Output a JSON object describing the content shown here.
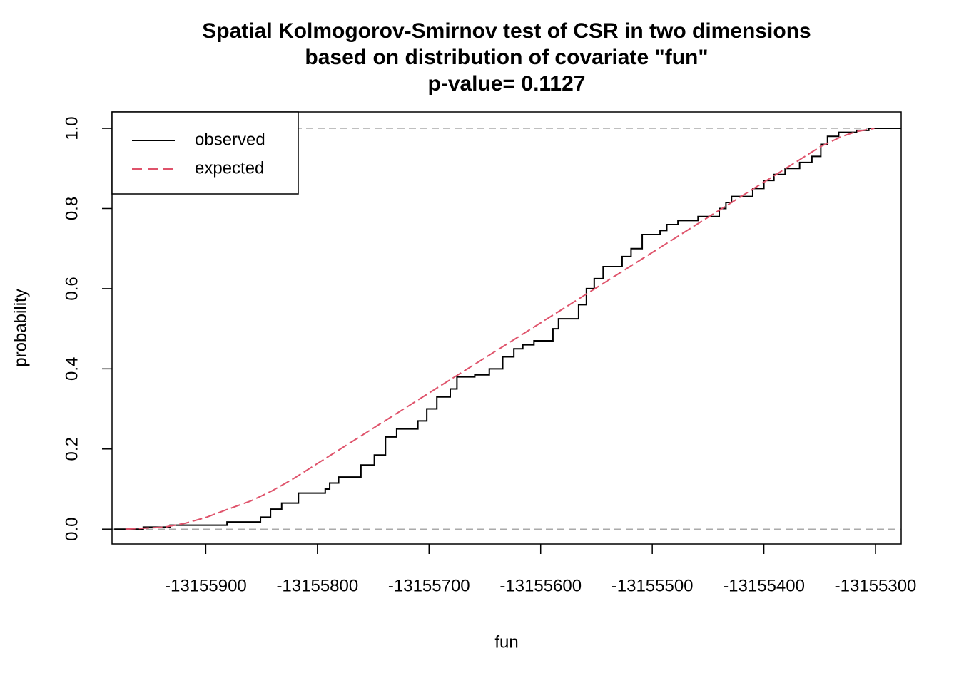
{
  "chart_data": {
    "type": "line",
    "title": "Spatial Kolmogorov-Smirnov test of CSR in two dimensions",
    "subtitle": "based on distribution of covariate \"fun\"",
    "annotation": "p-value= 0.1127",
    "xlabel": "fun",
    "ylabel": "probability",
    "xlim": [
      -13155984,
      -13155277
    ],
    "ylim": [
      -0.037,
      1.041
    ],
    "xticks": [
      -13155900,
      -13155800,
      -13155700,
      -13155600,
      -13155500,
      -13155400,
      -13155300
    ],
    "yticks": [
      {
        "value": 0,
        "label": "0.0"
      },
      0.2,
      0.4,
      0.6,
      0.8,
      {
        "value": 1,
        "label": "1.0"
      }
    ],
    "reference_lines": [
      0,
      1
    ],
    "legend": "topleft",
    "series": [
      {
        "name": "observed",
        "color": "#000000",
        "style": "step",
        "x": [
          -13155982,
          -13155956,
          -13155932,
          -13155881,
          -13155851,
          -13155842,
          -13155832,
          -13155817,
          -13155793,
          -13155789,
          -13155781,
          -13155761,
          -13155749,
          -13155739,
          -13155729,
          -13155710,
          -13155702,
          -13155693,
          -13155681,
          -13155675,
          -13155659,
          -13155646,
          -13155634,
          -13155624,
          -13155616,
          -13155606,
          -13155589,
          -13155584,
          -13155566,
          -13155559,
          -13155552,
          -13155544,
          -13155527,
          -13155519,
          -13155509,
          -13155493,
          -13155487,
          -13155477,
          -13155459,
          -13155440,
          -13155434,
          -13155429,
          -13155410,
          -13155400,
          -13155391,
          -13155381,
          -13155368,
          -13155357,
          -13155349,
          -13155343,
          -13155333,
          -13155317,
          -13155306
        ],
        "values": [
          0,
          0.005,
          0.01,
          0.018,
          0.03,
          0.05,
          0.065,
          0.09,
          0.1,
          0.115,
          0.13,
          0.16,
          0.185,
          0.23,
          0.25,
          0.27,
          0.3,
          0.33,
          0.35,
          0.38,
          0.385,
          0.4,
          0.43,
          0.45,
          0.46,
          0.47,
          0.5,
          0.525,
          0.56,
          0.6,
          0.625,
          0.655,
          0.68,
          0.7,
          0.735,
          0.745,
          0.76,
          0.77,
          0.78,
          0.8,
          0.815,
          0.83,
          0.85,
          0.87,
          0.885,
          0.9,
          0.915,
          0.93,
          0.96,
          0.98,
          0.99,
          0.995,
          1
        ]
      },
      {
        "name": "expected",
        "color": "#DF536B",
        "style": "dashed",
        "x": [
          -13155972,
          -13155937,
          -13155918,
          -13155899,
          -13155880,
          -13155860,
          -13155841,
          -13155822,
          -13155701,
          -13155573,
          -13155445,
          -13155349,
          -13155330,
          -13155317,
          -13155301
        ],
        "values": [
          0,
          0.005,
          0.015,
          0.03,
          0.05,
          0.07,
          0.095,
          0.125,
          0.338,
          0.562,
          0.787,
          0.955,
          0.98,
          0.992,
          1
        ]
      }
    ]
  }
}
